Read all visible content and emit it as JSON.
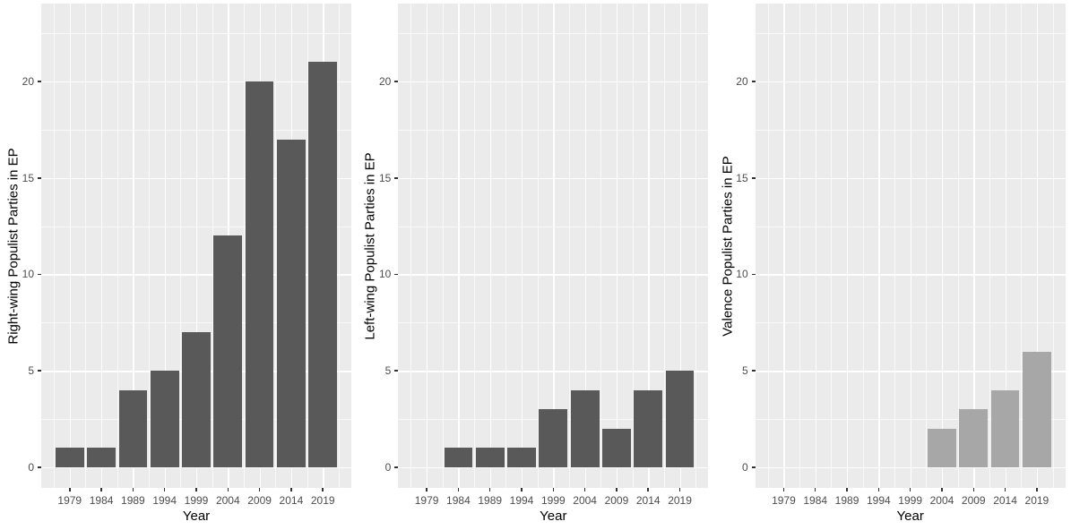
{
  "style": {
    "panel_bg": "#ebebeb",
    "grid_major_color": "#ffffff",
    "grid_minor_color": "#ffffff",
    "tick_mark_color": "#333333",
    "tick_label_color": "#4d4d4d",
    "axis_title_color": "#000000"
  },
  "chart_data": [
    {
      "type": "bar",
      "title": "",
      "xlabel": "Year",
      "ylabel": "Right-wing Populist Parties in EP",
      "categories": [
        "1979",
        "1984",
        "1989",
        "1994",
        "1999",
        "2004",
        "2009",
        "2014",
        "2019"
      ],
      "values": [
        1,
        1,
        4,
        5,
        7,
        12,
        20,
        17,
        21
      ],
      "y_ticks": [
        0,
        5,
        10,
        15,
        20
      ],
      "ylim": [
        -1.07,
        24.04
      ],
      "xlim": [
        1974.5,
        2023.5
      ],
      "bar_width_years": 4.5,
      "bar_color": "#595959",
      "grid": true,
      "legend": false
    },
    {
      "type": "bar",
      "title": "",
      "xlabel": "Year",
      "ylabel": "Left-wing Populist Parties in EP",
      "categories": [
        "1979",
        "1984",
        "1989",
        "1994",
        "1999",
        "2004",
        "2009",
        "2014",
        "2019"
      ],
      "values": [
        0,
        1,
        1,
        1,
        3,
        4,
        2,
        4,
        5
      ],
      "y_ticks": [
        0,
        5,
        10,
        15,
        20
      ],
      "ylim": [
        -1.07,
        24.04
      ],
      "xlim": [
        1974.5,
        2023.5
      ],
      "bar_width_years": 4.5,
      "bar_color": "#595959",
      "grid": true,
      "legend": false
    },
    {
      "type": "bar",
      "title": "",
      "xlabel": "Year",
      "ylabel": "Valence Populist Parties in EP",
      "categories": [
        "1979",
        "1984",
        "1989",
        "1994",
        "1999",
        "2004",
        "2009",
        "2014",
        "2019"
      ],
      "values": [
        0,
        0,
        0,
        0,
        0,
        2,
        3,
        4,
        6
      ],
      "y_ticks": [
        0,
        5,
        10,
        15,
        20
      ],
      "ylim": [
        -1.07,
        24.04
      ],
      "xlim": [
        1974.5,
        2023.5
      ],
      "bar_width_years": 4.5,
      "bar_color": "#a7a7a7",
      "grid": true,
      "legend": false
    }
  ]
}
